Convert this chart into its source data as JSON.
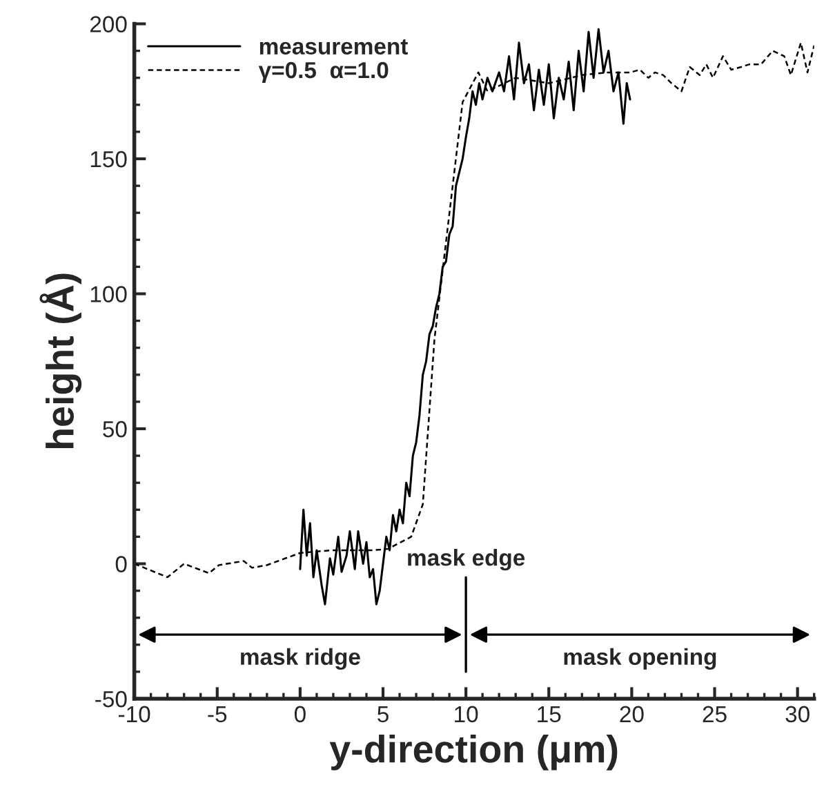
{
  "chart_data": {
    "type": "line",
    "xlabel": "y-direction (μm)",
    "ylabel": "height (Å)",
    "xlim": [
      -10,
      31
    ],
    "xticks": [
      -10,
      -5,
      0,
      5,
      10,
      15,
      20,
      25,
      30
    ],
    "ylim": [
      -50,
      200
    ],
    "yticks": [
      -50,
      0,
      50,
      100,
      150,
      200
    ],
    "grid": false,
    "legend": "top left",
    "series": [
      {
        "name": "measurement",
        "color": "#000000",
        "line_style": "solid",
        "x": [
          0.0,
          0.2,
          0.4,
          0.6,
          0.8,
          1.0,
          1.3,
          1.5,
          1.8,
          2.0,
          2.3,
          2.5,
          2.8,
          3.0,
          3.3,
          3.5,
          3.8,
          4.0,
          4.2,
          4.4,
          4.6,
          4.8,
          5.0,
          5.2,
          5.4,
          5.6,
          5.8,
          6.0,
          6.2,
          6.4,
          6.6,
          6.8,
          7.0,
          7.2,
          7.4,
          7.6,
          7.8,
          8.0,
          8.2,
          8.4,
          8.6,
          8.8,
          9.0,
          9.2,
          9.4,
          9.6,
          9.8,
          10.0,
          10.2,
          10.4,
          10.6,
          10.8,
          11.0,
          11.3,
          11.6,
          12.0,
          12.3,
          12.6,
          12.9,
          13.2,
          13.5,
          13.8,
          14.1,
          14.4,
          14.7,
          15.0,
          15.3,
          15.6,
          15.9,
          16.2,
          16.5,
          16.8,
          17.1,
          17.4,
          17.7,
          18.0,
          18.3,
          18.6,
          18.9,
          19.2,
          19.5,
          19.7,
          19.9
        ],
        "values": [
          -2,
          20,
          3,
          15,
          -5,
          5,
          -8,
          -15,
          2,
          -4,
          10,
          -3,
          3,
          12,
          -2,
          12,
          0,
          8,
          -5,
          -2,
          -15,
          -10,
          0,
          10,
          5,
          18,
          12,
          20,
          15,
          30,
          25,
          40,
          45,
          55,
          70,
          75,
          85,
          88,
          95,
          100,
          110,
          112,
          122,
          125,
          140,
          145,
          150,
          158,
          165,
          175,
          170,
          178,
          172,
          180,
          175,
          182,
          175,
          188,
          172,
          193,
          178,
          185,
          168,
          183,
          170,
          185,
          165,
          180,
          172,
          186,
          168,
          190,
          175,
          197,
          180,
          198,
          182,
          190,
          175,
          182,
          163,
          178,
          172
        ]
      },
      {
        "name": "γ=0.5  α=1.0",
        "color": "#000000",
        "line_style": "dashed",
        "x": [
          -10,
          -8.0,
          -7.0,
          -5.5,
          -4.9,
          -3.4,
          -2.9,
          -2.0,
          0.0,
          1.9,
          4.4,
          5.3,
          6.7,
          7.4,
          8.1,
          9.8,
          10.75,
          11.3,
          13,
          15,
          17,
          18.5,
          19.9,
          20.5,
          21.0,
          21.4,
          21.9,
          22.4,
          23.0,
          23.5,
          24.1,
          24.5,
          24.9,
          25.5,
          26.0,
          26.6,
          27.1,
          27.8,
          28.5,
          29.2,
          29.6,
          30.2,
          30.6,
          31.0
        ],
        "values": [
          0,
          -5,
          0,
          -3.5,
          -0.5,
          1,
          -1.5,
          -0.5,
          4,
          5,
          5,
          5.5,
          10,
          22,
          83,
          171,
          182,
          175,
          180,
          178,
          181,
          182,
          182,
          183,
          180,
          182,
          181,
          178,
          175,
          184,
          181,
          185,
          180,
          188,
          183,
          184,
          185,
          185,
          190,
          188,
          181,
          193,
          182,
          192
        ]
      }
    ],
    "ref_lines": [
      {
        "axis": "x",
        "value": 10,
        "label": "mask edge",
        "color": "#000000",
        "line_style": "solid"
      }
    ],
    "annotations": [
      "mask ridge",
      "mask opening"
    ]
  }
}
